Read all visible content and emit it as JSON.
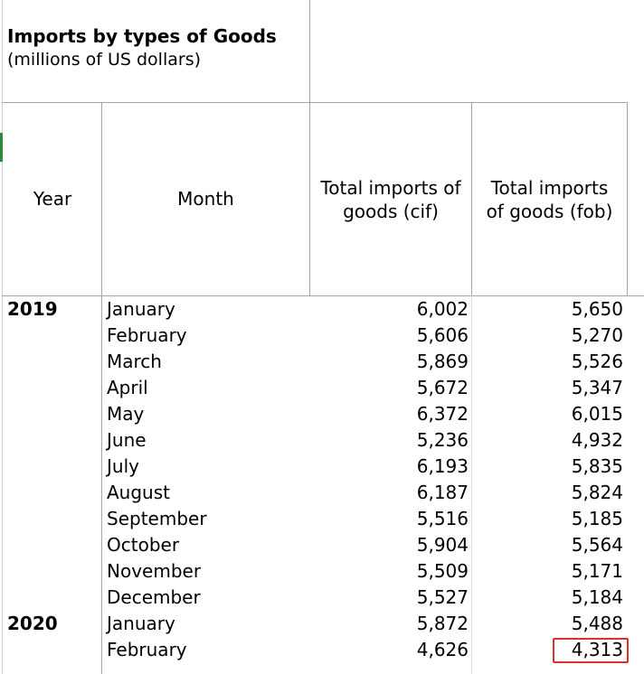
{
  "title": "Imports by types of Goods",
  "subtitle": "(millions of US dollars)",
  "headers": {
    "year": "Year",
    "month": "Month",
    "cif_line1": "Total imports of",
    "cif_line2": "goods (cif)",
    "fob_line1": "Total imports",
    "fob_line2": "of goods (fob)"
  },
  "rows": [
    {
      "year": "2019",
      "month": "January",
      "cif": "6,002",
      "fob": "5,650"
    },
    {
      "year": "",
      "month": "February",
      "cif": "5,606",
      "fob": "5,270"
    },
    {
      "year": "",
      "month": "March",
      "cif": "5,869",
      "fob": "5,526"
    },
    {
      "year": "",
      "month": "April",
      "cif": "5,672",
      "fob": "5,347"
    },
    {
      "year": "",
      "month": "May",
      "cif": "6,372",
      "fob": "6,015"
    },
    {
      "year": "",
      "month": "June",
      "cif": "5,236",
      "fob": "4,932"
    },
    {
      "year": "",
      "month": "July",
      "cif": "6,193",
      "fob": "5,835"
    },
    {
      "year": "",
      "month": "August",
      "cif": "6,187",
      "fob": "5,824"
    },
    {
      "year": "",
      "month": "September",
      "cif": "5,516",
      "fob": "5,185"
    },
    {
      "year": "",
      "month": "October",
      "cif": "5,904",
      "fob": "5,564"
    },
    {
      "year": "",
      "month": "November",
      "cif": "5,509",
      "fob": "5,171"
    },
    {
      "year": "",
      "month": "December",
      "cif": "5,527",
      "fob": "5,184"
    },
    {
      "year": "2020",
      "month": "January",
      "cif": "5,872",
      "fob": "5,488"
    },
    {
      "year": "",
      "month": "February",
      "cif": "4,626",
      "fob": "4,313"
    }
  ],
  "highlight_color": "#e0302a"
}
